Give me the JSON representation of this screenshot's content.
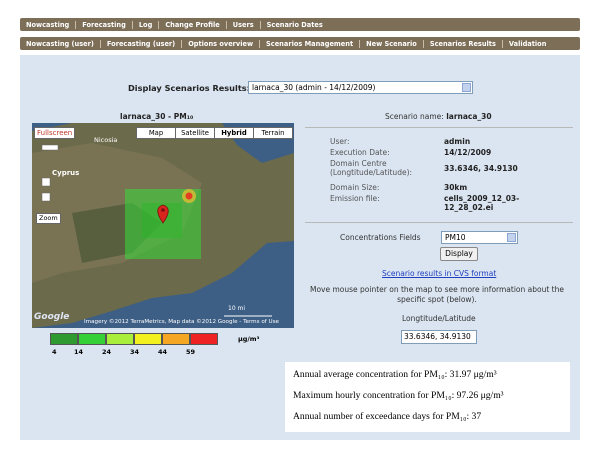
{
  "nav_primary": [
    "Nowcasting",
    "Forecasting",
    "Log",
    "Change Profile",
    "Users",
    "Scenario Dates"
  ],
  "nav_secondary": [
    "Nowcasting (user)",
    "Forecasting (user)",
    "Options overview",
    "Scenarios Management",
    "New Scenario",
    "Scenarios Results",
    "Validation"
  ],
  "selector": {
    "label": "Display Scenarios Results:",
    "value": "larnaca_30 (admin - 14/12/2009)"
  },
  "map": {
    "title": "larnaca_30 - PM₁₀",
    "fullscreen": "Fullscreen",
    "map_types": [
      "Map",
      "Satellite",
      "Hybrid",
      "Terrain"
    ],
    "zoom": "Zoom",
    "places": [
      "Nicosia",
      "Cyprus"
    ],
    "scale": "10 mi",
    "logo": "Google",
    "attribution": "Imagery ©2012 TerraMetrics, Map data ©2012 Google - Terms of Use"
  },
  "legend": {
    "ticks": [
      4,
      14,
      24,
      34,
      44,
      59
    ],
    "unit": "μg/m³",
    "colors": [
      "#2f9a2f",
      "#35d035",
      "#a8ee3a",
      "#f3f020",
      "#f5a623",
      "#ee2222"
    ]
  },
  "details": {
    "scenario_label": "Scenario name:",
    "scenario_name": "larnaca_30",
    "rows": [
      [
        "User:",
        "admin"
      ],
      [
        "Execution Date:",
        "14/12/2009"
      ],
      [
        "Domain Centre (Longtitude/Latitude):",
        "33.6346, 34.9130"
      ],
      [
        "Domain Size:",
        "30km"
      ],
      [
        "Emission file:",
        "cells_2009_12_03-12_28_02.ei"
      ]
    ]
  },
  "fields": {
    "label": "Concentrations Fields",
    "value": "PM10",
    "button": "Display"
  },
  "link": "Scenario results in CVS format",
  "hint": "Move mouse pointer on the map to see more information about the specific spot (below).",
  "coords": {
    "label": "Longtitude/Latitude",
    "value": "33.6346, 34.9130"
  },
  "summary": [
    "Annual average concentration for PM₁₀: 31.97 μg/m³",
    "Maximum hourly concentration for PM₁₀: 97.26 μg/m³",
    "Annual number of exceedance days for PM₁₀: 37"
  ]
}
